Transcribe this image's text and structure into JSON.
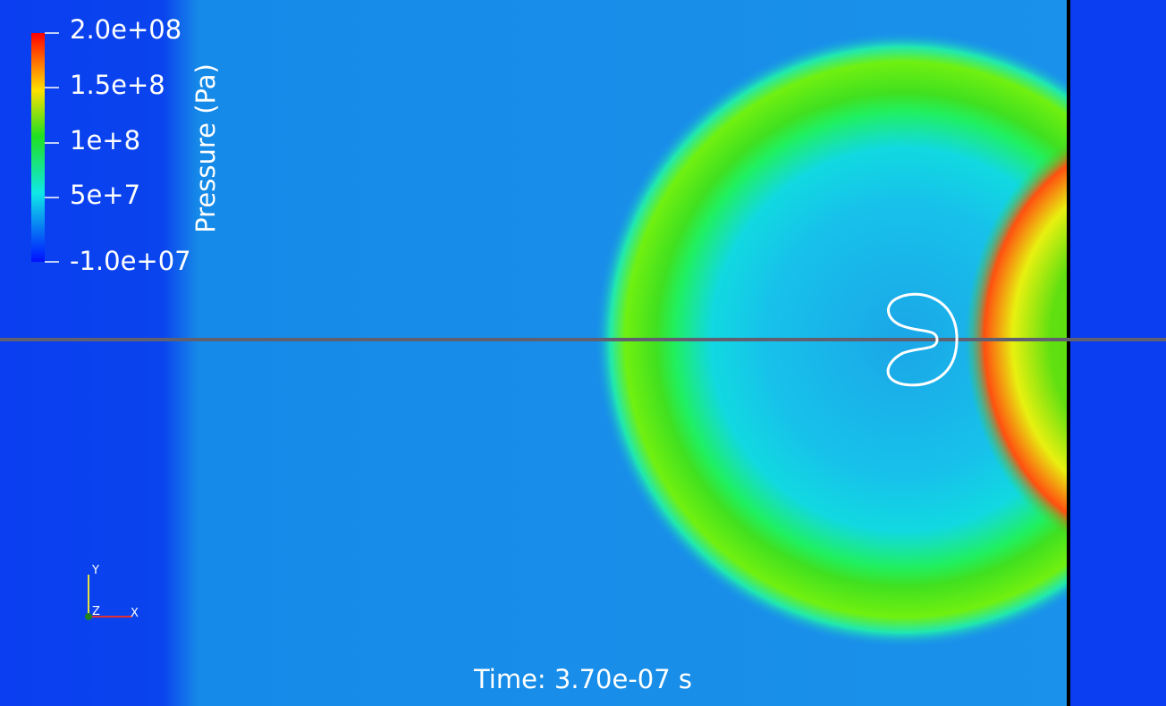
{
  "colorbar": {
    "title": "Pressure (Pa)",
    "labels": [
      "2.0e+08",
      "1.5e+8",
      "1e+8",
      "5e+7",
      "-1.0e+07"
    ]
  },
  "axes": {
    "y": "Y",
    "z": "Z",
    "x": "X"
  },
  "time": "Time: 3.70e-07 s"
}
